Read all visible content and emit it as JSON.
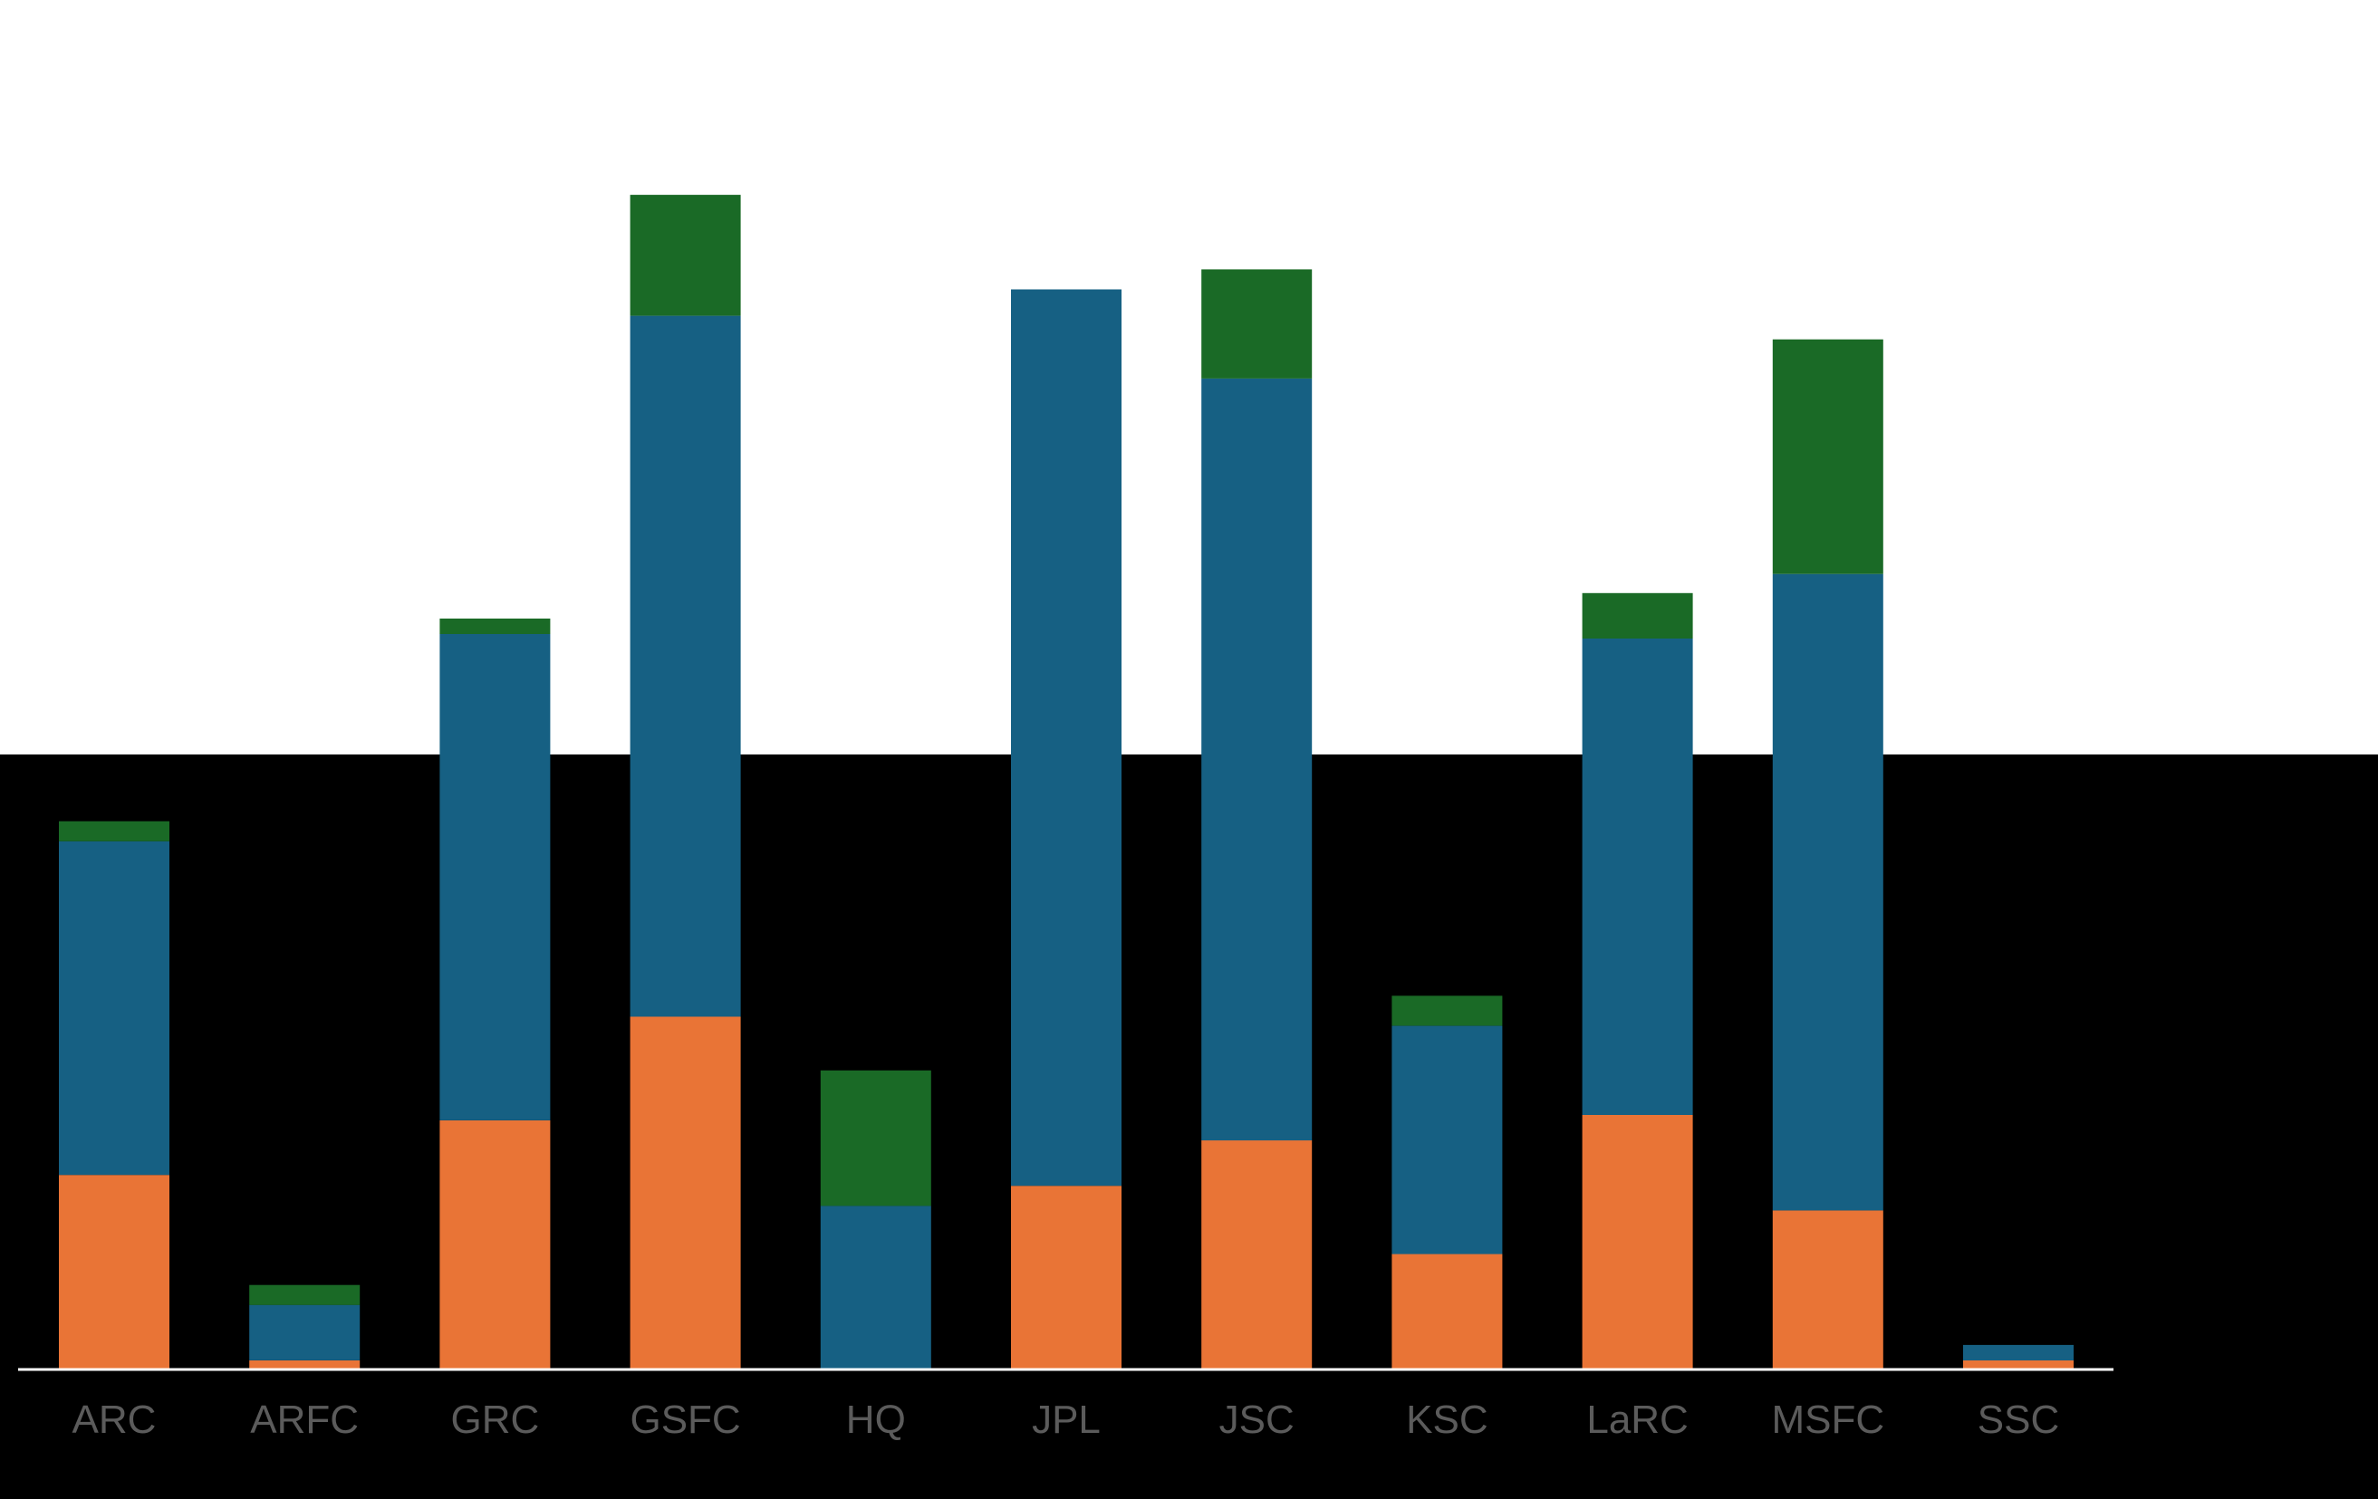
{
  "colors": {
    "background_top": "#ffffff",
    "background_bottom": "#000000",
    "axis_line": "#ffffff",
    "tick_label": "#5b5b5b"
  },
  "chart_data": {
    "type": "bar",
    "stacked": true,
    "categories": [
      "ARC",
      "ARFC",
      "GRC",
      "GSFC",
      "HQ",
      "JPL",
      "JSC",
      "KSC",
      "LaRC",
      "MSFC",
      "SSC"
    ],
    "series": [
      {
        "color": "#e97436",
        "values": [
          213,
          9,
          273,
          387,
          0,
          201,
          251,
          126,
          279,
          174,
          9
        ]
      },
      {
        "color": "#166083",
        "values": [
          367,
          61,
          535,
          771,
          179,
          986,
          838,
          251,
          524,
          700,
          17
        ]
      },
      {
        "color": "#1a6a26",
        "values": [
          22,
          22,
          17,
          133,
          149,
          0,
          120,
          33,
          50,
          258,
          0
        ]
      }
    ],
    "ylim": [
      0,
      1320
    ],
    "grid": false,
    "legend": "none",
    "title": "",
    "xlabel": "",
    "ylabel": ""
  }
}
